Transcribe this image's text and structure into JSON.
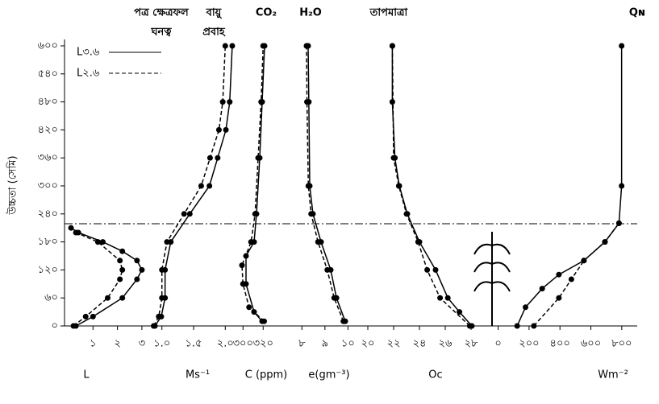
{
  "chart_data": [
    {
      "type": "line",
      "title": [
        "পত্র ক্ষেত্রফল",
        "ঘনত্ব"
      ],
      "xlabel": "L",
      "ylabel": "উচ্চতা (সেমি)",
      "ylim": [
        0,
        600
      ],
      "yticks": [
        {
          "value": 0,
          "label": "০"
        },
        {
          "value": 60,
          "label": "৬০"
        },
        {
          "value": 120,
          "label": "১২০"
        },
        {
          "value": 180,
          "label": "১৮০"
        },
        {
          "value": 240,
          "label": "২৪০"
        },
        {
          "value": 300,
          "label": "৩০০"
        },
        {
          "value": 360,
          "label": "৩৬০"
        },
        {
          "value": 420,
          "label": "৪২০"
        },
        {
          "value": 480,
          "label": "৪৮০"
        },
        {
          "value": 540,
          "label": "৫৪০"
        },
        {
          "value": 600,
          "label": "৬০০"
        }
      ],
      "xlim": [
        0,
        3.3
      ],
      "xticks": [
        {
          "value": 1,
          "label": "১"
        },
        {
          "value": 2,
          "label": "২"
        },
        {
          "value": 3,
          "label": "৩"
        }
      ],
      "series": [
        {
          "name": "L৩.৬",
          "color": "#000000",
          "dashed": false,
          "x": [
            0.3,
            1.0,
            2.2,
            2.8,
            3.0,
            2.8,
            2.2,
            1.4,
            0.4,
            0.1
          ],
          "y": [
            0,
            20,
            60,
            100,
            120,
            140,
            160,
            180,
            200,
            210
          ]
        },
        {
          "name": "L২.৬",
          "color": "#000000",
          "dashed": true,
          "x": [
            0.2,
            0.7,
            1.6,
            2.1,
            2.2,
            2.1,
            1.2,
            0.3
          ],
          "y": [
            0,
            20,
            60,
            100,
            120,
            140,
            180,
            200
          ]
        }
      ]
    },
    {
      "type": "line",
      "title": [
        "বায়ু",
        "প্রবাহ"
      ],
      "xlabel": "Ms⁻¹",
      "xlim": [
        0.8,
        2.2
      ],
      "xticks": [
        {
          "value": 1,
          "label": "১.০"
        },
        {
          "value": 1.5,
          "label": "১.৫"
        },
        {
          "value": 2,
          "label": "২.০"
        }
      ],
      "series": [
        {
          "color": "#000000",
          "dashed": false,
          "x": [
            0.89,
            0.99,
            1.05,
            1.05,
            1.14,
            1.44,
            1.75,
            1.88,
            2.01,
            2.07,
            2.11
          ],
          "y": [
            0,
            20,
            60,
            120,
            180,
            240,
            300,
            360,
            420,
            480,
            600
          ]
        },
        {
          "color": "#000000",
          "dashed": true,
          "x": [
            0.87,
            0.95,
            1.0,
            1.0,
            1.08,
            1.35,
            1.62,
            1.76,
            1.9,
            1.96,
            2.0
          ],
          "y": [
            0,
            20,
            60,
            120,
            180,
            240,
            300,
            360,
            420,
            480,
            600
          ]
        }
      ]
    },
    {
      "type": "line",
      "title": [
        "CO₂"
      ],
      "xlabel": "C (ppm)",
      "xlim": [
        295,
        335
      ],
      "xticks": [
        {
          "value": 300,
          "label": "৩০০"
        },
        {
          "value": 320,
          "label": "৩২০"
        }
      ],
      "series": [
        {
          "color": "#000000",
          "dashed": false,
          "x": [
            319,
            311,
            303,
            303,
            311,
            313.4,
            316.6,
            319,
            321.4
          ],
          "y": [
            10,
            30,
            90,
            150,
            180,
            240,
            360,
            480,
            600
          ]
        },
        {
          "color": "#000000",
          "dashed": true,
          "x": [
            321,
            306,
            300,
            299,
            308,
            312,
            315,
            318,
            320
          ],
          "y": [
            10,
            40,
            90,
            130,
            180,
            240,
            360,
            480,
            600
          ]
        }
      ]
    },
    {
      "type": "line",
      "title": [
        "H₂O"
      ],
      "xlabel": "e(gm⁻³)",
      "xlim": [
        7.5,
        10.3
      ],
      "xticks": [
        {
          "value": 8,
          "label": "৮"
        },
        {
          "value": 9,
          "label": "৯"
        },
        {
          "value": 10,
          "label": "১০"
        }
      ],
      "series": [
        {
          "color": "#000000",
          "dashed": false,
          "x": [
            9.88,
            9.5,
            9.25,
            8.83,
            8.48,
            8.34,
            8.3,
            8.27
          ],
          "y": [
            10,
            60,
            120,
            180,
            240,
            300,
            480,
            600
          ]
        },
        {
          "color": "#000000",
          "dashed": true,
          "x": [
            9.8,
            9.4,
            9.1,
            8.7,
            8.4,
            8.28,
            8.22,
            8.2
          ],
          "y": [
            10,
            60,
            120,
            180,
            240,
            300,
            480,
            600
          ]
        }
      ]
    },
    {
      "type": "line",
      "title": [
        "তাপমাত্রা"
      ],
      "xlabel": "Oc",
      "xlim": [
        19,
        29
      ],
      "xticks": [
        {
          "value": 20,
          "label": "২০"
        },
        {
          "value": 22,
          "label": "২২"
        },
        {
          "value": 24,
          "label": "২৪"
        },
        {
          "value": 26,
          "label": "২৬"
        },
        {
          "value": 28,
          "label": "২৮"
        }
      ],
      "series": [
        {
          "color": "#000000",
          "dashed": false,
          "x": [
            28.06,
            27.1,
            26.2,
            25.25,
            24.0,
            23.06,
            22.44,
            22.1,
            21.9,
            21.9
          ],
          "y": [
            0,
            30,
            60,
            120,
            180,
            240,
            300,
            360,
            480,
            600
          ]
        },
        {
          "color": "#000000",
          "dashed": true,
          "x": [
            27.9,
            25.6,
            24.6,
            23.9,
            23.0,
            22.4,
            22.0,
            21.9
          ],
          "y": [
            0,
            60,
            120,
            180,
            240,
            300,
            360,
            600
          ]
        }
      ]
    },
    {
      "type": "line",
      "title": [
        "Qɴ"
      ],
      "xlabel": "Wm⁻²",
      "xlim": [
        -50,
        900
      ],
      "xticks": [
        {
          "value": 0,
          "label": "০"
        },
        {
          "value": 200,
          "label": "২০০"
        },
        {
          "value": 400,
          "label": "৪০০"
        },
        {
          "value": 600,
          "label": "৬০০"
        },
        {
          "value": 800,
          "label": "৮০০"
        }
      ],
      "series": [
        {
          "color": "#000000",
          "dashed": false,
          "x": [
            123,
            177,
            285,
            393,
            555,
            691,
            782,
            799,
            799
          ],
          "y": [
            0,
            40,
            80,
            110,
            140,
            180,
            220,
            300,
            600
          ]
        },
        {
          "color": "#000000",
          "dashed": true,
          "x": [
            231,
            393,
            474,
            555,
            691,
            782
          ],
          "y": [
            0,
            60,
            100,
            140,
            180,
            220
          ]
        }
      ]
    }
  ]
}
